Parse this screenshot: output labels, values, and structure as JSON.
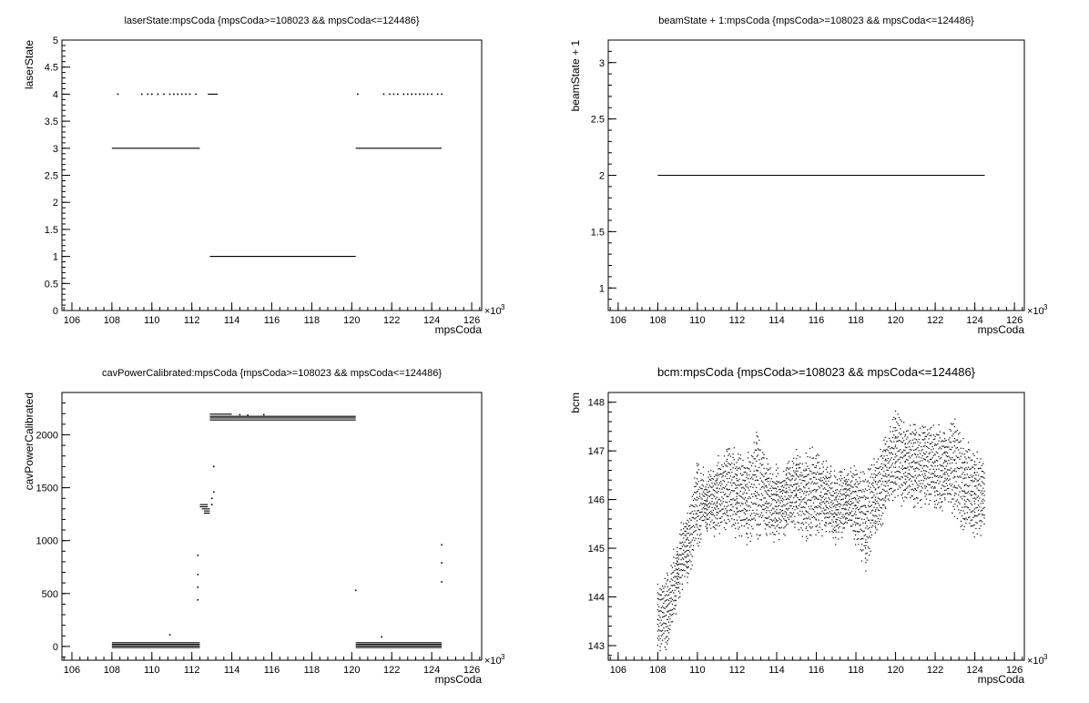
{
  "chart_data": [
    {
      "type": "scatter",
      "title": "laserState:mpsCoda {mpsCoda>=108023 && mpsCoda<=124486}",
      "xlabel": "mpsCoda",
      "ylabel": "laserState",
      "xlim": [
        105.5,
        126.5
      ],
      "ylim": [
        0,
        5
      ],
      "x_multiplier_label": "×10",
      "x_multiplier_exp": "3",
      "xticks": [
        "106",
        "108",
        "110",
        "112",
        "114",
        "116",
        "118",
        "120",
        "122",
        "124",
        "126"
      ],
      "yticks": [
        "0",
        "0.5",
        "1",
        "1.5",
        "2",
        "2.5",
        "3",
        "3.5",
        "4",
        "4.5",
        "5"
      ],
      "segments": [
        {
          "x0": 108.0,
          "x1": 112.4,
          "y": 3
        },
        {
          "x0": 112.9,
          "x1": 120.2,
          "y": 1
        },
        {
          "x0": 120.2,
          "x1": 124.5,
          "y": 3
        },
        {
          "x0": 112.8,
          "x1": 113.3,
          "y": 4
        }
      ],
      "points": [
        {
          "x": 108.3,
          "y": 4
        },
        {
          "x": 109.5,
          "y": 4
        },
        {
          "x": 109.8,
          "y": 4
        },
        {
          "x": 110.0,
          "y": 4
        },
        {
          "x": 110.3,
          "y": 4
        },
        {
          "x": 110.6,
          "y": 4
        },
        {
          "x": 110.9,
          "y": 4
        },
        {
          "x": 111.1,
          "y": 4
        },
        {
          "x": 111.3,
          "y": 4
        },
        {
          "x": 111.5,
          "y": 4
        },
        {
          "x": 111.7,
          "y": 4
        },
        {
          "x": 111.9,
          "y": 4
        },
        {
          "x": 112.2,
          "y": 4
        },
        {
          "x": 120.3,
          "y": 4
        },
        {
          "x": 121.6,
          "y": 4
        },
        {
          "x": 121.9,
          "y": 4
        },
        {
          "x": 122.1,
          "y": 4
        },
        {
          "x": 122.3,
          "y": 4
        },
        {
          "x": 122.6,
          "y": 4
        },
        {
          "x": 122.8,
          "y": 4
        },
        {
          "x": 123.0,
          "y": 4
        },
        {
          "x": 123.2,
          "y": 4
        },
        {
          "x": 123.4,
          "y": 4
        },
        {
          "x": 123.6,
          "y": 4
        },
        {
          "x": 123.8,
          "y": 4
        },
        {
          "x": 124.0,
          "y": 4
        },
        {
          "x": 124.3,
          "y": 4
        },
        {
          "x": 124.5,
          "y": 4
        }
      ]
    },
    {
      "type": "scatter",
      "title": "beamState + 1:mpsCoda {mpsCoda>=108023 && mpsCoda<=124486}",
      "xlabel": "mpsCoda",
      "ylabel": "beamState + 1",
      "xlim": [
        105.5,
        126.5
      ],
      "ylim": [
        0.8,
        3.2
      ],
      "x_multiplier_label": "×10",
      "x_multiplier_exp": "3",
      "xticks": [
        "106",
        "108",
        "110",
        "112",
        "114",
        "116",
        "118",
        "120",
        "122",
        "124",
        "126"
      ],
      "yticks": [
        "1",
        "1.5",
        "2",
        "2.5",
        "3"
      ],
      "segments": [
        {
          "x0": 108.0,
          "x1": 124.5,
          "y": 2
        }
      ],
      "points": []
    },
    {
      "type": "scatter",
      "title": "cavPowerCalibrated:mpsCoda {mpsCoda>=108023 && mpsCoda<=124486}",
      "xlabel": "mpsCoda",
      "ylabel": "cavPowerCalibrated",
      "xlim": [
        105.5,
        126.5
      ],
      "ylim": [
        -130,
        2400
      ],
      "x_multiplier_label": "×10",
      "x_multiplier_exp": "3",
      "xticks": [
        "106",
        "108",
        "110",
        "112",
        "114",
        "116",
        "118",
        "120",
        "122",
        "124",
        "126"
      ],
      "yticks": [
        "0",
        "500",
        "1000",
        "1500",
        "2000"
      ],
      "segments": [
        {
          "x0": 108.0,
          "x1": 112.4,
          "y": -10
        },
        {
          "x0": 108.0,
          "x1": 112.4,
          "y": 5
        },
        {
          "x0": 108.0,
          "x1": 112.4,
          "y": 20
        },
        {
          "x0": 108.0,
          "x1": 112.4,
          "y": 35
        },
        {
          "x0": 112.9,
          "x1": 120.2,
          "y": 2140
        },
        {
          "x0": 112.9,
          "x1": 120.2,
          "y": 2160
        },
        {
          "x0": 112.9,
          "x1": 120.2,
          "y": 2175
        },
        {
          "x0": 112.9,
          "x1": 114.0,
          "y": 2195
        },
        {
          "x0": 120.2,
          "x1": 124.5,
          "y": -10
        },
        {
          "x0": 120.2,
          "x1": 124.5,
          "y": 5
        },
        {
          "x0": 120.2,
          "x1": 124.5,
          "y": 20
        },
        {
          "x0": 120.2,
          "x1": 124.5,
          "y": 35
        },
        {
          "x0": 112.4,
          "x1": 112.8,
          "y": 1340
        },
        {
          "x0": 112.4,
          "x1": 112.8,
          "y": 1320
        },
        {
          "x0": 112.5,
          "x1": 112.9,
          "y": 1300
        },
        {
          "x0": 112.6,
          "x1": 112.9,
          "y": 1280
        },
        {
          "x0": 112.6,
          "x1": 112.9,
          "y": 1260
        }
      ],
      "points": [
        {
          "x": 110.9,
          "y": 110
        },
        {
          "x": 112.3,
          "y": 860
        },
        {
          "x": 112.3,
          "y": 680
        },
        {
          "x": 112.3,
          "y": 560
        },
        {
          "x": 112.3,
          "y": 440
        },
        {
          "x": 113.0,
          "y": 1340
        },
        {
          "x": 113.0,
          "y": 1400
        },
        {
          "x": 113.1,
          "y": 1460
        },
        {
          "x": 113.1,
          "y": 1700
        },
        {
          "x": 114.4,
          "y": 2190
        },
        {
          "x": 114.8,
          "y": 2185
        },
        {
          "x": 115.6,
          "y": 2190
        },
        {
          "x": 120.2,
          "y": 530
        },
        {
          "x": 121.5,
          "y": 90
        },
        {
          "x": 124.5,
          "y": 960
        },
        {
          "x": 124.5,
          "y": 790
        },
        {
          "x": 124.5,
          "y": 610
        }
      ]
    },
    {
      "type": "scatter",
      "title": "bcm:mpsCoda {mpsCoda>=108023 && mpsCoda<=124486}",
      "xlabel": "mpsCoda",
      "ylabel": "bcm",
      "xlim": [
        105.5,
        126.5
      ],
      "ylim": [
        142.7,
        148.2
      ],
      "x_multiplier_label": "×10",
      "x_multiplier_exp": "3",
      "xticks": [
        "106",
        "108",
        "110",
        "112",
        "114",
        "116",
        "118",
        "120",
        "122",
        "124",
        "126"
      ],
      "yticks": [
        "143",
        "144",
        "145",
        "146",
        "147",
        "148"
      ],
      "segments": [],
      "band": [
        {
          "x": 108.0,
          "lo": 143.0,
          "hi": 144.3
        },
        {
          "x": 108.5,
          "lo": 143.0,
          "hi": 144.4
        },
        {
          "x": 109.0,
          "lo": 144.0,
          "hi": 145.1
        },
        {
          "x": 109.5,
          "lo": 144.5,
          "hi": 145.8
        },
        {
          "x": 110.0,
          "lo": 145.2,
          "hi": 146.7
        },
        {
          "x": 110.5,
          "lo": 145.4,
          "hi": 146.4
        },
        {
          "x": 111.0,
          "lo": 145.4,
          "hi": 146.8
        },
        {
          "x": 111.5,
          "lo": 145.5,
          "hi": 147.0
        },
        {
          "x": 112.0,
          "lo": 145.4,
          "hi": 146.9
        },
        {
          "x": 112.5,
          "lo": 145.3,
          "hi": 146.9
        },
        {
          "x": 113.0,
          "lo": 145.4,
          "hi": 147.4
        },
        {
          "x": 113.5,
          "lo": 145.3,
          "hi": 146.7
        },
        {
          "x": 114.0,
          "lo": 145.3,
          "hi": 146.6
        },
        {
          "x": 114.5,
          "lo": 145.4,
          "hi": 146.7
        },
        {
          "x": 115.0,
          "lo": 145.6,
          "hi": 146.9
        },
        {
          "x": 115.5,
          "lo": 145.3,
          "hi": 146.9
        },
        {
          "x": 116.0,
          "lo": 145.5,
          "hi": 147.0
        },
        {
          "x": 116.5,
          "lo": 145.4,
          "hi": 146.7
        },
        {
          "x": 117.0,
          "lo": 145.3,
          "hi": 146.4
        },
        {
          "x": 117.5,
          "lo": 145.5,
          "hi": 146.5
        },
        {
          "x": 118.0,
          "lo": 145.3,
          "hi": 146.6
        },
        {
          "x": 118.5,
          "lo": 144.7,
          "hi": 146.4
        },
        {
          "x": 119.0,
          "lo": 145.5,
          "hi": 146.8
        },
        {
          "x": 119.5,
          "lo": 145.8,
          "hi": 147.2
        },
        {
          "x": 120.0,
          "lo": 146.2,
          "hi": 147.7
        },
        {
          "x": 120.5,
          "lo": 146.0,
          "hi": 147.5
        },
        {
          "x": 121.0,
          "lo": 146.0,
          "hi": 147.5
        },
        {
          "x": 121.5,
          "lo": 146.1,
          "hi": 147.4
        },
        {
          "x": 122.0,
          "lo": 146.0,
          "hi": 147.5
        },
        {
          "x": 122.5,
          "lo": 146.0,
          "hi": 147.3
        },
        {
          "x": 123.0,
          "lo": 145.8,
          "hi": 147.6
        },
        {
          "x": 123.5,
          "lo": 145.4,
          "hi": 147.2
        },
        {
          "x": 124.0,
          "lo": 145.4,
          "hi": 146.9
        },
        {
          "x": 124.5,
          "lo": 145.4,
          "hi": 146.7
        }
      ],
      "points": []
    }
  ]
}
